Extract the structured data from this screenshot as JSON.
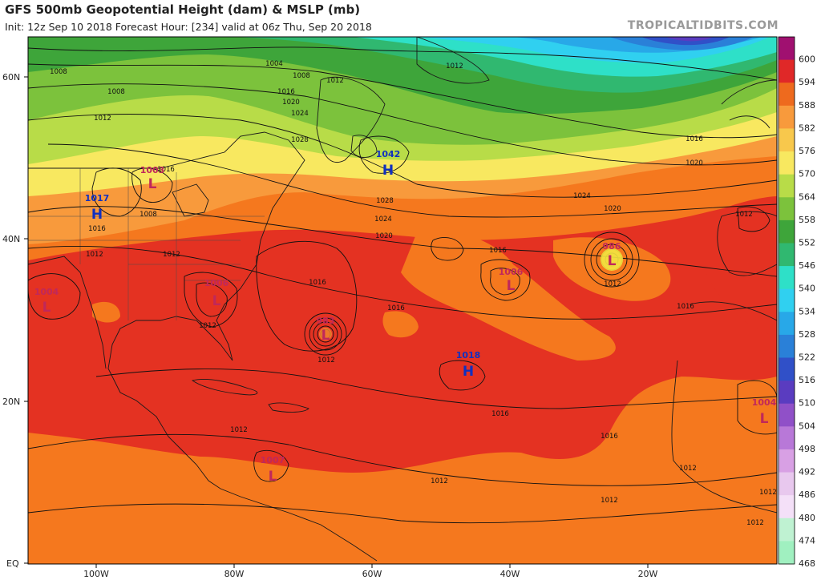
{
  "header": {
    "title": "GFS 500mb Geopotential Height (dam) & MSLP (mb)",
    "subtitle": "Init: 12z Sep 10 2018   Forecast Hour: [234]   valid at 06z Thu, Sep 20 2018",
    "credit": "TROPICALTIDBITS.COM"
  },
  "axes": {
    "lat_labels": [
      {
        "text": "60N"
      },
      {
        "text": "40N"
      },
      {
        "text": "20N"
      },
      {
        "text": "EQ"
      }
    ],
    "lon_labels": [
      {
        "text": "100W"
      },
      {
        "text": "80W"
      },
      {
        "text": "60W"
      },
      {
        "text": "40W"
      },
      {
        "text": "20W"
      }
    ]
  },
  "colorbar": {
    "labels": [
      "600",
      "594",
      "588",
      "582",
      "576",
      "570",
      "564",
      "558",
      "552",
      "546",
      "540",
      "534",
      "528",
      "522",
      "516",
      "510",
      "504",
      "498",
      "492",
      "486",
      "480",
      "474",
      "468"
    ],
    "colors": [
      "#a01070",
      "#e02828",
      "#ee6a1e",
      "#f89a3c",
      "#f8c84c",
      "#f8e860",
      "#b8dc48",
      "#7cc23c",
      "#3ea53a",
      "#30b870",
      "#2ee0c8",
      "#30d0f0",
      "#28a8e8",
      "#2a80d8",
      "#3050c8",
      "#5a3cc0",
      "#9050c8",
      "#b878d8",
      "#d8a0e4",
      "#e8c8ee",
      "#f4e0f8",
      "#bff2d2",
      "#a0f0c0"
    ]
  },
  "pressure_centers": [
    {
      "type": "L",
      "value": "1003",
      "color": "#c0285a"
    },
    {
      "type": "H",
      "value": "1017",
      "color": "#1030c0"
    },
    {
      "type": "L",
      "value": "1004",
      "color": "#c0285a"
    },
    {
      "type": "L",
      "value": "1006",
      "color": "#c0285a"
    },
    {
      "type": "L",
      "value": "983",
      "color": "#c0285a"
    },
    {
      "type": "H",
      "value": "1042",
      "color": "#1030c0"
    },
    {
      "type": "H",
      "value": "1018",
      "color": "#1030c0"
    },
    {
      "type": "L",
      "value": "1006",
      "color": "#c0285a"
    },
    {
      "type": "L",
      "value": "986",
      "color": "#c0285a"
    },
    {
      "type": "L",
      "value": "1007",
      "color": "#c0285a"
    },
    {
      "type": "L",
      "value": "1004",
      "color": "#c0285a"
    }
  ],
  "isobar_labels": [
    {
      "text": "1004"
    },
    {
      "text": "1008"
    },
    {
      "text": "1008"
    },
    {
      "text": "1012"
    },
    {
      "text": "1012"
    },
    {
      "text": "1016"
    },
    {
      "text": "1020"
    },
    {
      "text": "1024"
    },
    {
      "text": "1028"
    },
    {
      "text": "1012"
    },
    {
      "text": "1008"
    },
    {
      "text": "1016"
    },
    {
      "text": "1012"
    },
    {
      "text": "1012"
    },
    {
      "text": "1008"
    },
    {
      "text": "1016"
    },
    {
      "text": "1028"
    },
    {
      "text": "1024"
    },
    {
      "text": "1020"
    },
    {
      "text": "1016"
    },
    {
      "text": "1016"
    },
    {
      "text": "1012"
    },
    {
      "text": "1016"
    },
    {
      "text": "1012"
    },
    {
      "text": "1016"
    },
    {
      "text": "1016"
    },
    {
      "text": "1024"
    },
    {
      "text": "1020"
    },
    {
      "text": "1012"
    },
    {
      "text": "1016"
    },
    {
      "text": "1020"
    },
    {
      "text": "1016"
    },
    {
      "text": "1012"
    },
    {
      "text": "1012"
    },
    {
      "text": "1012"
    },
    {
      "text": "1012"
    },
    {
      "text": "1012"
    },
    {
      "text": "1012"
    },
    {
      "text": "1012"
    }
  ]
}
